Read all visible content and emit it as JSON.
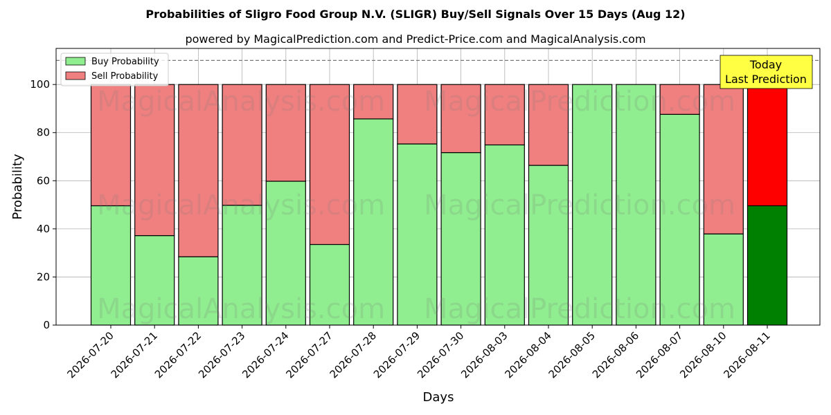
{
  "chart_data": {
    "type": "bar",
    "stacked": true,
    "title": "Probabilities of Sligro Food Group N.V. (SLIGR) Buy/Sell Signals Over 15 Days (Aug 12)",
    "subtitle": "powered by MagicalPrediction.com and Predict-Price.com and MagicalAnalysis.com",
    "xlabel": "Days",
    "ylabel": "Probability",
    "ylim": [
      0,
      115
    ],
    "yticks": [
      0,
      20,
      40,
      60,
      80,
      100
    ],
    "threshold_line": 110,
    "grid": true,
    "legend_position": "top-left",
    "categories": [
      "2026-07-20",
      "2026-07-21",
      "2026-07-22",
      "2026-07-23",
      "2026-07-24",
      "2026-07-27",
      "2026-07-28",
      "2026-07-29",
      "2026-07-30",
      "2026-08-03",
      "2026-08-04",
      "2026-08-05",
      "2026-08-06",
      "2026-08-07",
      "2026-08-10",
      "2026-08-11"
    ],
    "series": [
      {
        "name": "Buy Probability",
        "color": "#90ee90",
        "values": [
          49.6,
          37.2,
          28.4,
          49.8,
          59.8,
          33.5,
          85.7,
          75.3,
          71.7,
          74.9,
          66.4,
          100,
          100,
          87.6,
          37.9,
          49.6
        ]
      },
      {
        "name": "Sell Probability",
        "color": "#f08080",
        "values": [
          50.4,
          62.8,
          71.6,
          50.2,
          40.2,
          66.5,
          14.3,
          24.7,
          28.3,
          25.1,
          33.6,
          0,
          0,
          12.4,
          62.1,
          50.4
        ]
      }
    ],
    "highlight": {
      "index": 15,
      "buy_color": "#008000",
      "sell_color": "#ff0000"
    },
    "annotation": {
      "lines": [
        "Today",
        "Last Prediction"
      ],
      "background": "#ffff44"
    },
    "watermarks": [
      "MagicalAnalysis.com",
      "MagicalPrediction.com"
    ]
  }
}
